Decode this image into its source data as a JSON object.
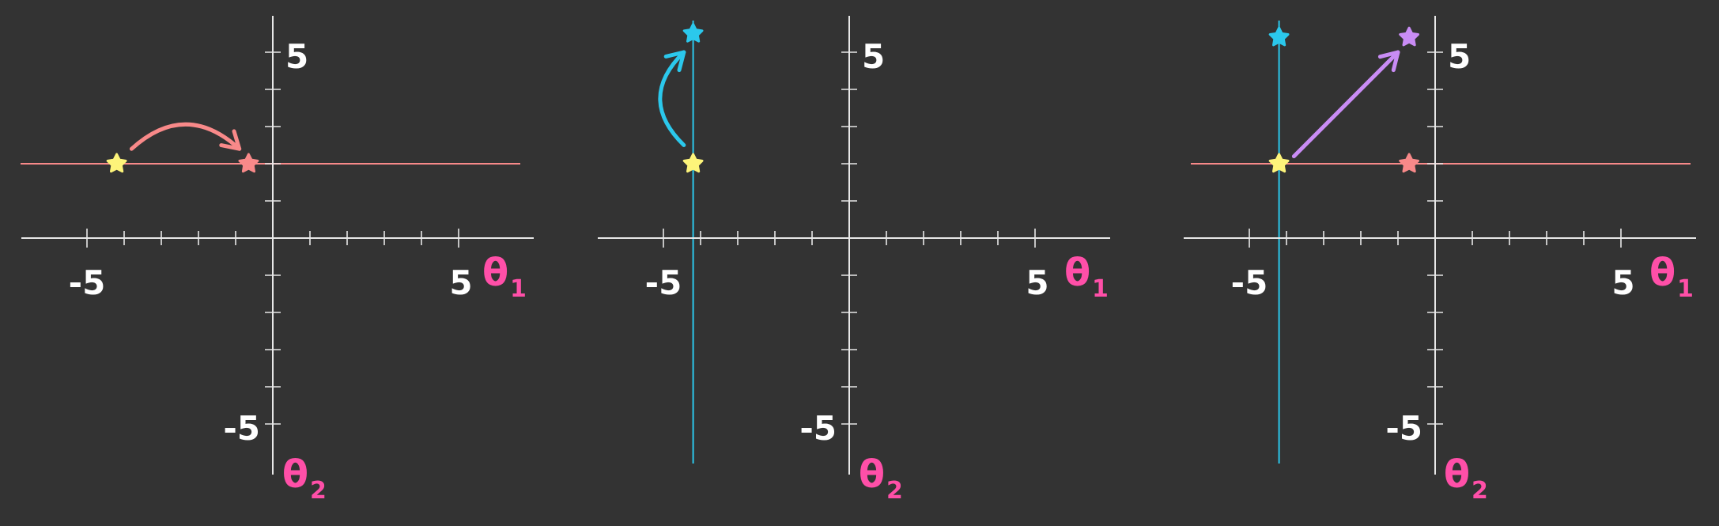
{
  "colors": {
    "background": "#333333",
    "axis": "#e8e8e8",
    "label": "#ffffff",
    "axis_title": "#ff4fa8",
    "start_star": "#fdf47a",
    "theta1_target": "#f88989",
    "theta2_target": "#2bc8ec",
    "joint_target": "#c98cf5"
  },
  "panels": [
    {
      "id": "panel-theta1-update",
      "axes": {
        "x_title": "θ",
        "x_sub": "1",
        "y_title": "θ",
        "y_sub": "2",
        "x_tick_labels": [
          "-5",
          "5"
        ],
        "y_tick_labels": [
          "5",
          "-5"
        ]
      },
      "guide_lines": [
        {
          "orientation": "horizontal",
          "value": 2,
          "color": "#f88989",
          "name": "theta1-search-line"
        }
      ],
      "stars": [
        {
          "name": "start-star",
          "x": -4.2,
          "y": 2,
          "color": "#fdf47a"
        },
        {
          "name": "theta1-target-star",
          "x": -0.65,
          "y": 2,
          "color": "#f88989"
        }
      ],
      "arrows": [
        {
          "name": "theta1-update-arrow",
          "style": "arc-right",
          "from": [
            -3.8,
            2.4
          ],
          "to": [
            -0.9,
            2.4
          ],
          "color": "#f88989"
        }
      ]
    },
    {
      "id": "panel-theta2-update",
      "axes": {
        "x_title": "θ",
        "x_sub": "1",
        "y_title": "θ",
        "y_sub": "2",
        "x_tick_labels": [
          "-5",
          "5"
        ],
        "y_tick_labels": [
          "5",
          "-5"
        ]
      },
      "guide_lines": [
        {
          "orientation": "vertical",
          "value": -4.2,
          "color": "#2bc8ec",
          "name": "theta2-search-line"
        }
      ],
      "stars": [
        {
          "name": "start-star",
          "x": -4.2,
          "y": 2,
          "color": "#fdf47a"
        },
        {
          "name": "theta2-target-star",
          "x": -4.2,
          "y": 5.5,
          "color": "#2bc8ec"
        }
      ],
      "arrows": [
        {
          "name": "theta2-update-arrow",
          "style": "arc-up",
          "from": [
            -4.45,
            2.5
          ],
          "to": [
            -4.45,
            5.0
          ],
          "color": "#2bc8ec"
        }
      ]
    },
    {
      "id": "panel-joint-update",
      "axes": {
        "x_title": "θ",
        "x_sub": "1",
        "y_title": "θ",
        "y_sub": "2",
        "x_tick_labels": [
          "-5",
          "5"
        ],
        "y_tick_labels": [
          "5",
          "-5"
        ]
      },
      "guide_lines": [
        {
          "orientation": "horizontal",
          "value": 2,
          "color": "#f88989",
          "name": "theta1-search-line"
        },
        {
          "orientation": "vertical",
          "value": -4.2,
          "color": "#2bc8ec",
          "name": "theta2-search-line"
        }
      ],
      "stars": [
        {
          "name": "start-star",
          "x": -4.2,
          "y": 2,
          "color": "#fdf47a"
        },
        {
          "name": "theta1-target-star",
          "x": -0.7,
          "y": 2,
          "color": "#f88989"
        },
        {
          "name": "theta2-target-star",
          "x": -4.2,
          "y": 5.4,
          "color": "#2bc8ec"
        },
        {
          "name": "joint-target-star",
          "x": -0.7,
          "y": 5.4,
          "color": "#c98cf5"
        }
      ],
      "arrows": [
        {
          "name": "joint-update-arrow",
          "style": "straight",
          "from": [
            -3.8,
            2.2
          ],
          "to": [
            -1.0,
            5.0
          ],
          "color": "#c98cf5"
        }
      ]
    }
  ]
}
